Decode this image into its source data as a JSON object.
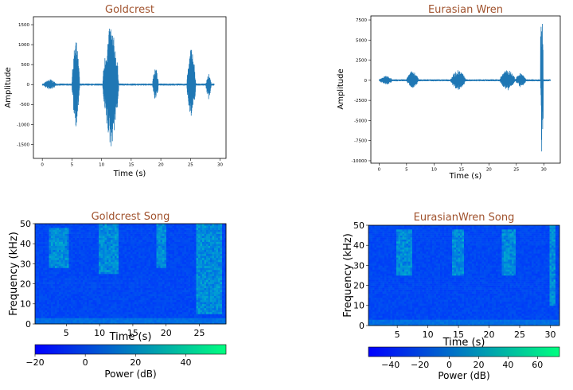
{
  "chart_data": [
    {
      "type": "line",
      "title": "Goldcrest",
      "xlabel": "Time (s)",
      "ylabel": "Amplitude",
      "xlim": [
        -1.5,
        31
      ],
      "ylim": [
        -1850,
        1700
      ],
      "xticks": [
        "0",
        "5",
        "10",
        "15",
        "20",
        "25",
        "30"
      ],
      "yticks": [
        "1500",
        "1000",
        "500",
        "0",
        "-500",
        "-1000",
        "-1500"
      ],
      "color": "#1f77b4",
      "baseline_noise": 25,
      "bursts": [
        {
          "t0": 0.2,
          "t1": 2.4,
          "peak": 140
        },
        {
          "t0": 5.0,
          "t1": 6.3,
          "peak": 1200,
          "min": -1100
        },
        {
          "t0": 10.2,
          "t1": 12.9,
          "peak": 1580,
          "min": -1650
        },
        {
          "t0": 18.6,
          "t1": 19.6,
          "peak": 460,
          "min": -450
        },
        {
          "t0": 24.4,
          "t1": 25.9,
          "peak": 1000,
          "min": -900
        },
        {
          "t0": 27.6,
          "t1": 28.5,
          "peak": 280,
          "min": -380
        }
      ]
    },
    {
      "type": "line",
      "title": "Eurasian Wren",
      "xlabel": "Time (s)",
      "ylabel": "Amplitude",
      "xlim": [
        -1.5,
        33
      ],
      "ylim": [
        -10300,
        8000
      ],
      "xticks": [
        "0",
        "5",
        "10",
        "15",
        "20",
        "25",
        "30"
      ],
      "yticks": [
        "7500",
        "5000",
        "2500",
        "0",
        "-2500",
        "-5000",
        "-7500",
        "-10000"
      ],
      "color": "#1f77b4",
      "baseline_noise": 120,
      "bursts": [
        {
          "t0": 0.0,
          "t1": 2.5,
          "peak": 600
        },
        {
          "t0": 5.0,
          "t1": 7.2,
          "peak": 1300,
          "min": -1000
        },
        {
          "t0": 13.0,
          "t1": 15.8,
          "peak": 1400,
          "min": -1300
        },
        {
          "t0": 22.0,
          "t1": 24.8,
          "peak": 1500,
          "min": -1300
        },
        {
          "t0": 24.8,
          "t1": 26.8,
          "peak": 1000,
          "min": -900
        },
        {
          "t0": 29.4,
          "t1": 29.9,
          "peak": 7400,
          "min": -9200
        }
      ]
    },
    {
      "type": "heatmap",
      "title": "Goldcrest Song",
      "xlabel": "Time (s)",
      "ylabel": "Frequency (kHz)",
      "xlim": [
        0.3,
        29
      ],
      "ylim": [
        0,
        50
      ],
      "xticks": [
        "5",
        "10",
        "15",
        "20",
        "25"
      ],
      "yticks": [
        "0",
        "10",
        "20",
        "30",
        "40",
        "50"
      ],
      "colorbar": {
        "label": "Power (dB)",
        "range": [
          -20,
          56
        ],
        "ticks": [
          "−20",
          "0",
          "20",
          "40"
        ]
      },
      "energy_bands": [
        {
          "t0": 2.5,
          "t1": 5.5,
          "f0": 28,
          "f1": 48
        },
        {
          "t0": 10.0,
          "t1": 13.0,
          "f0": 25,
          "f1": 50
        },
        {
          "t0": 18.5,
          "t1": 20.0,
          "f0": 28,
          "f1": 50
        },
        {
          "t0": 24.5,
          "t1": 28.5,
          "f0": 5,
          "f1": 50
        }
      ]
    },
    {
      "type": "heatmap",
      "title": "EurasianWren Song",
      "xlabel": "Time (s)",
      "ylabel": "Frequency (kHz)",
      "xlim": [
        0.3,
        31.5
      ],
      "ylim": [
        0,
        50
      ],
      "xticks": [
        "5",
        "10",
        "15",
        "20",
        "25",
        "30"
      ],
      "yticks": [
        "0",
        "10",
        "20",
        "30",
        "40",
        "50"
      ],
      "colorbar": {
        "label": "Power (dB)",
        "range": [
          -55,
          75
        ],
        "ticks": [
          "−40",
          "−20",
          "0",
          "20",
          "40",
          "60"
        ]
      },
      "energy_bands": [
        {
          "t0": 5.0,
          "t1": 7.5,
          "f0": 25,
          "f1": 48
        },
        {
          "t0": 14.0,
          "t1": 16.0,
          "f0": 25,
          "f1": 48
        },
        {
          "t0": 22.0,
          "t1": 24.5,
          "f0": 25,
          "f1": 48
        },
        {
          "t0": 30.0,
          "t1": 31.0,
          "f0": 10,
          "f1": 50
        }
      ]
    }
  ]
}
